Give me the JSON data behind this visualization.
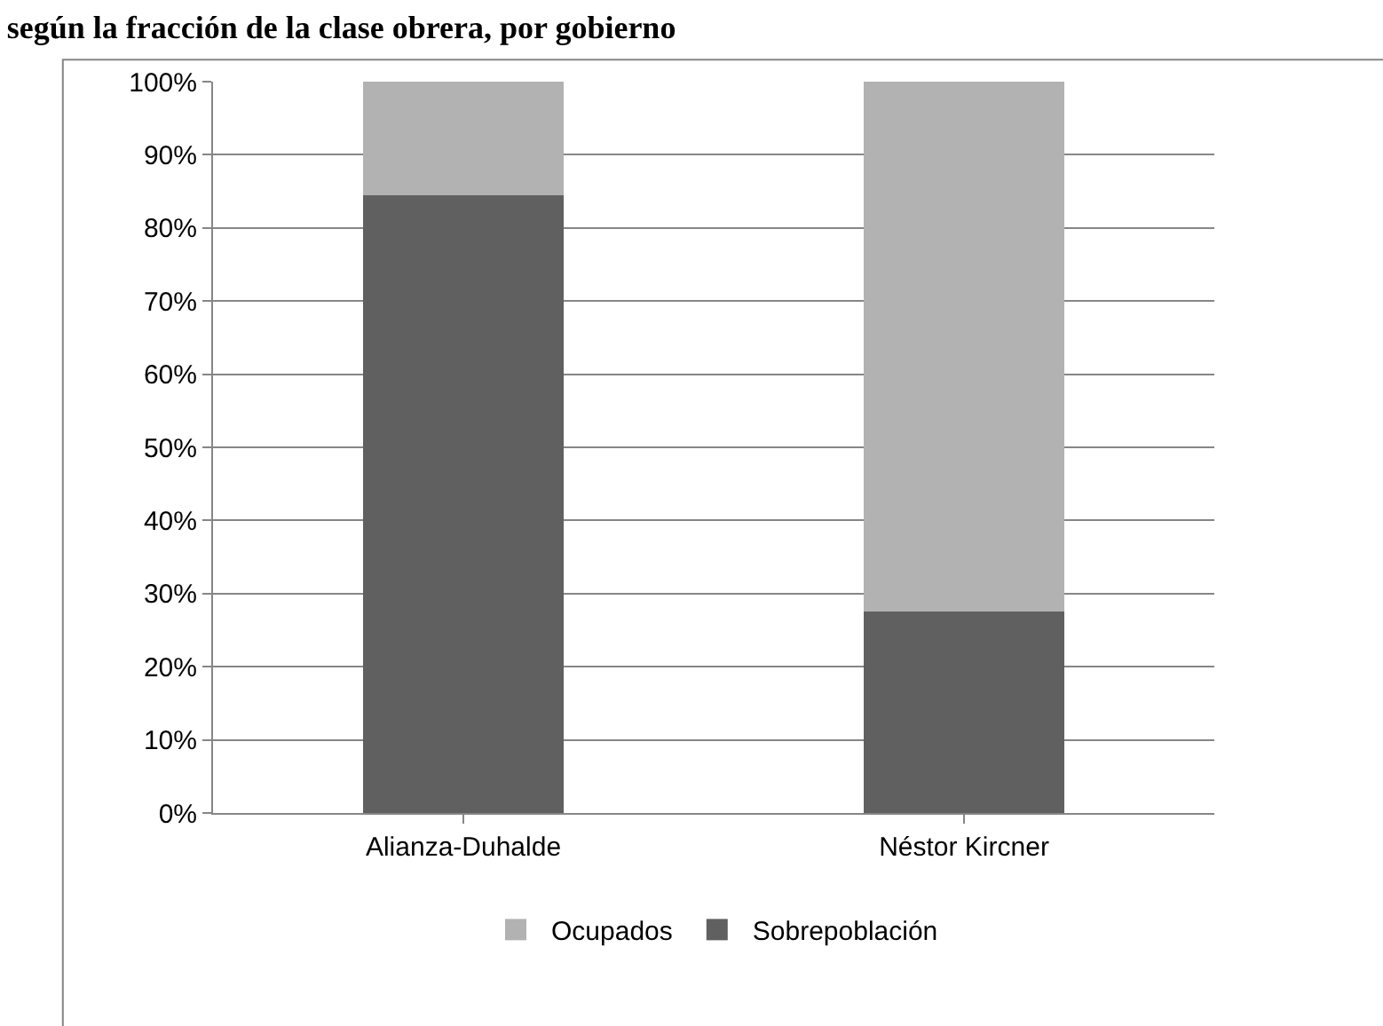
{
  "chart_data": {
    "type": "bar",
    "stacked": true,
    "title": "según la fracción de la clase obrera, por gobierno",
    "categories": [
      "Alianza-Duhalde",
      "Néstor Kircner"
    ],
    "series": [
      {
        "name": "Sobrepoblación",
        "color": "#606060",
        "values": [
          84.5,
          27.5
        ]
      },
      {
        "name": "Ocupados",
        "color": "#b2b2b2",
        "values": [
          15.5,
          72.5
        ]
      }
    ],
    "ylim": [
      0,
      100
    ],
    "yticks": [
      {
        "value": 0,
        "label": "0%"
      },
      {
        "value": 10,
        "label": "10%"
      },
      {
        "value": 20,
        "label": "20%"
      },
      {
        "value": 30,
        "label": "30%"
      },
      {
        "value": 40,
        "label": "40%"
      },
      {
        "value": 50,
        "label": "50%"
      },
      {
        "value": 60,
        "label": "60%"
      },
      {
        "value": 70,
        "label": "70%"
      },
      {
        "value": 80,
        "label": "80%"
      },
      {
        "value": 90,
        "label": "90%"
      },
      {
        "value": 100,
        "label": "100%"
      }
    ],
    "grid": "y",
    "legend": "bottom"
  }
}
